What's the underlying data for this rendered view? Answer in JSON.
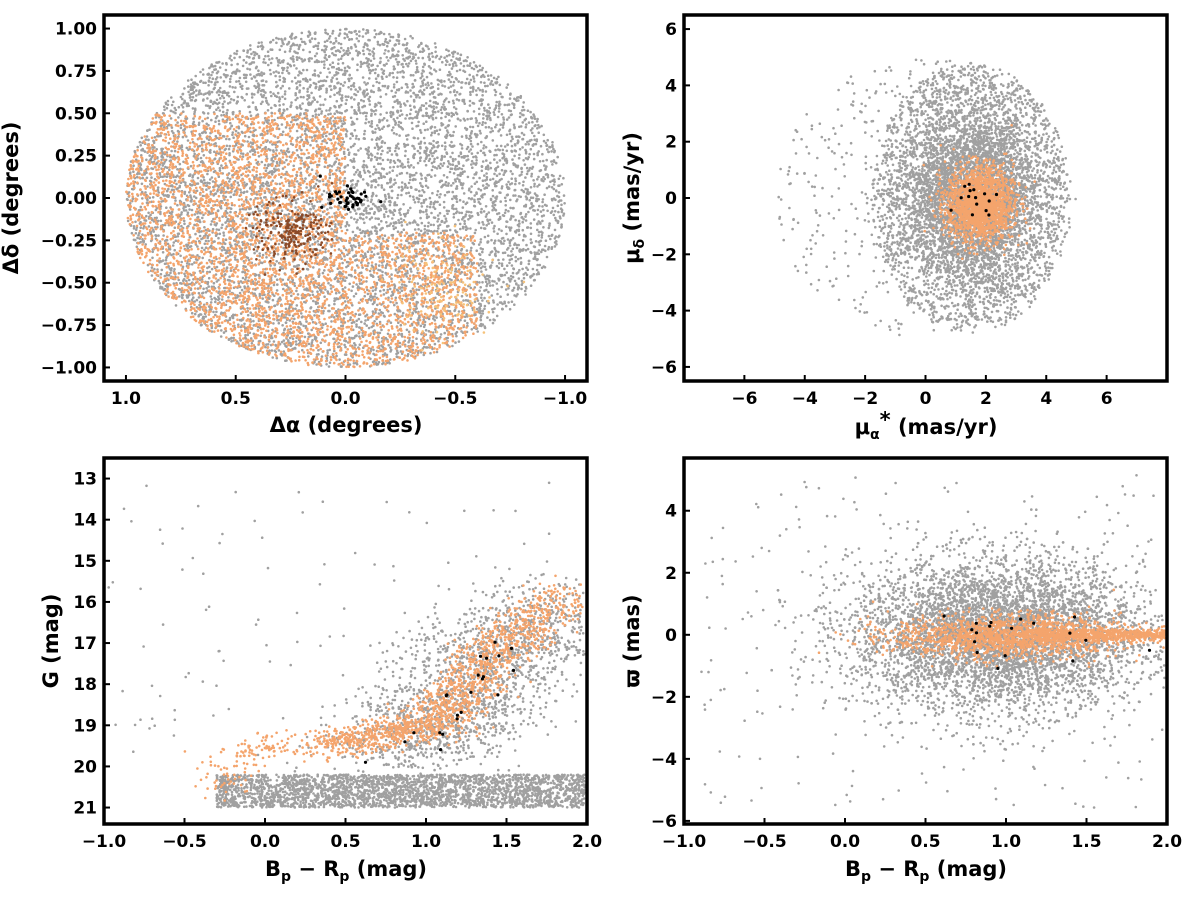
{
  "colors": {
    "field": "#a0a0a0",
    "members": "#f4a46c",
    "highlight": "#000000",
    "dark_orange": "#8b4a28",
    "light_orange": "#f6c27a"
  },
  "chart_data": [
    {
      "id": "sky",
      "type": "scatter",
      "xlabel": "Δα (degrees)",
      "ylabel": "Δδ (degrees)",
      "xlim": [
        1.1,
        -1.1
      ],
      "ylim": [
        -1.08,
        1.08
      ],
      "x_reversed": true,
      "xticks": [
        1.0,
        0.5,
        0.0,
        -0.5,
        -1.0
      ],
      "xtick_labels": [
        "1.0",
        "0.5",
        "0.0",
        "−0.5",
        "−1.0"
      ],
      "yticks": [
        1.0,
        0.75,
        0.5,
        0.25,
        0.0,
        -0.25,
        -0.5,
        -0.75,
        -1.0
      ],
      "ytick_labels": [
        "1.00",
        "0.75",
        "0.50",
        "0.25",
        "0.00",
        "−0.25",
        "−0.50",
        "−0.75",
        "−1.00"
      ],
      "grid": false,
      "series": [
        {
          "kind": "uniform-disk",
          "color": "#a0a0a0",
          "center": [
            0,
            0
          ],
          "radius": [
            1.0,
            1.0
          ],
          "count": 7000
        },
        {
          "kind": "region",
          "color": "#f4a46c",
          "bounds": {
            "x": [
              0.0,
              1.0
            ],
            "y": [
              -1.0,
              0.5
            ]
          },
          "count": 3200
        },
        {
          "kind": "region",
          "color": "#f4a46c",
          "bounds": {
            "x": [
              -0.6,
              0.0
            ],
            "y": [
              -1.0,
              -0.2
            ]
          },
          "count": 900
        },
        {
          "kind": "cluster",
          "color": "#8b4a28",
          "center": [
            0.25,
            -0.2
          ],
          "spread": [
            0.08,
            0.09
          ],
          "count": 220
        },
        {
          "kind": "cluster",
          "color": "#f6c27a",
          "center": [
            -0.45,
            -0.55
          ],
          "spread": [
            0.12,
            0.15
          ],
          "count": 120
        },
        {
          "kind": "cluster",
          "color": "#000000",
          "center": [
            0.0,
            0.0
          ],
          "spread": [
            0.06,
            0.03
          ],
          "count": 45
        }
      ]
    },
    {
      "id": "proper-motion",
      "type": "scatter",
      "xlabel": "μα* (mas/yr)",
      "ylabel": "μδ (mas/yr)",
      "xlim": [
        -8,
        8
      ],
      "ylim": [
        -6.5,
        6.5
      ],
      "xticks": [
        -6,
        -4,
        -2,
        0,
        2,
        4,
        6
      ],
      "xtick_labels": [
        "−6",
        "−4",
        "−2",
        "0",
        "2",
        "4",
        "6"
      ],
      "yticks": [
        -6,
        -4,
        -2,
        0,
        2,
        4,
        6
      ],
      "ytick_labels": [
        "−6",
        "−4",
        "−2",
        "0",
        "2",
        "4",
        "6"
      ],
      "grid": false,
      "series": [
        {
          "kind": "disk",
          "color": "#a0a0a0",
          "center": [
            1.5,
            0.0
          ],
          "radius": [
            3.3,
            4.8
          ],
          "count": 6000
        },
        {
          "kind": "sparse-disk",
          "color": "#a0a0a0",
          "center": [
            0.0,
            0.0
          ],
          "radius": [
            5.0,
            5.0
          ],
          "count": 500
        },
        {
          "kind": "cluster",
          "color": "#f4a46c",
          "center": [
            1.8,
            -0.2
          ],
          "spread": [
            0.55,
            0.65
          ],
          "count": 1800
        },
        {
          "kind": "cluster",
          "color": "#000000",
          "center": [
            1.6,
            0.0
          ],
          "spread": [
            0.4,
            0.4
          ],
          "count": 15
        }
      ]
    },
    {
      "id": "cmd",
      "type": "scatter",
      "xlabel": "Bp − Rp (mag)",
      "ylabel": "G (mag)",
      "xlim": [
        -1.0,
        2.0
      ],
      "ylim": [
        21.4,
        12.5
      ],
      "y_reversed": true,
      "xticks": [
        -1.0,
        -0.5,
        0.0,
        0.5,
        1.0,
        1.5,
        2.0
      ],
      "xtick_labels": [
        "−1.0",
        "−0.5",
        "0.0",
        "0.5",
        "1.0",
        "1.5",
        "2.0"
      ],
      "yticks": [
        21,
        20,
        19,
        18,
        17,
        16,
        15,
        14,
        13
      ],
      "ytick_labels": [
        "21",
        "20",
        "19",
        "18",
        "17",
        "16",
        "15",
        "14",
        "13"
      ],
      "grid": false,
      "series": [
        {
          "kind": "band",
          "color": "#a0a0a0",
          "x": [
            -0.3,
            2.0
          ],
          "y": [
            20.2,
            21.0
          ],
          "count": 2600
        },
        {
          "kind": "sequence",
          "color": "#a0a0a0",
          "points": [
            [
              0.8,
              19.6
            ],
            [
              1.1,
              19.0
            ],
            [
              1.3,
              18.0
            ],
            [
              1.5,
              17.0
            ],
            [
              1.8,
              16.0
            ]
          ],
          "width": 0.28,
          "count": 1800
        },
        {
          "kind": "sequence",
          "color": "#f4a46c",
          "points": [
            [
              0.3,
              19.5
            ],
            [
              0.8,
              19.2
            ],
            [
              1.1,
              18.8
            ],
            [
              1.3,
              17.8
            ],
            [
              1.5,
              16.9
            ],
            [
              1.9,
              15.8
            ]
          ],
          "width": 0.12,
          "count": 1500
        },
        {
          "kind": "sequence",
          "color": "#f4a46c",
          "points": [
            [
              -0.3,
              20.6
            ],
            [
              -0.1,
              19.6
            ],
            [
              0.1,
              19.4
            ]
          ],
          "width": 0.1,
          "count": 120
        },
        {
          "kind": "scatter",
          "color": "#a0a0a0",
          "x": [
            -1.0,
            2.0
          ],
          "y": [
            13.0,
            20.0
          ],
          "count": 120
        },
        {
          "kind": "sequence",
          "color": "#000000",
          "points": [
            [
              0.6,
              20.2
            ],
            [
              1.0,
              19.3
            ],
            [
              1.3,
              18.0
            ],
            [
              1.5,
              17.0
            ]
          ],
          "width": 0.1,
          "count": 22
        }
      ]
    },
    {
      "id": "parallax",
      "type": "scatter",
      "xlabel": "Bp − Rp (mag)",
      "ylabel": "ϖ (mas)",
      "xlim": [
        -1.0,
        2.0
      ],
      "ylim": [
        -6.1,
        5.7
      ],
      "xticks": [
        -1.0,
        -0.5,
        0.0,
        0.5,
        1.0,
        1.5,
        2.0
      ],
      "xtick_labels": [
        "−1.0",
        "−0.5",
        "0.0",
        "0.5",
        "1.0",
        "1.5",
        "2.0"
      ],
      "yticks": [
        -6,
        -4,
        -2,
        0,
        2,
        4
      ],
      "ytick_labels": [
        "−6",
        "−4",
        "−2",
        "0",
        "2",
        "4"
      ],
      "grid": false,
      "series": [
        {
          "kind": "blob",
          "color": "#a0a0a0",
          "center": [
            0.95,
            0.0
          ],
          "spread": [
            0.45,
            1.2
          ],
          "count": 5500
        },
        {
          "kind": "scatter",
          "color": "#a0a0a0",
          "x": [
            -0.9,
            2.0
          ],
          "y": [
            -5.6,
            5.2
          ],
          "count": 250
        },
        {
          "kind": "blob",
          "color": "#f4a46c",
          "center": [
            1.0,
            -0.05
          ],
          "spread": [
            0.35,
            0.35
          ],
          "count": 1500
        },
        {
          "kind": "ridge",
          "color": "#f4a46c",
          "x": [
            1.2,
            2.0
          ],
          "y": 0.0,
          "width": 0.1,
          "count": 600
        },
        {
          "kind": "cluster",
          "color": "#000000",
          "center": [
            0.9,
            0.0
          ],
          "spread": [
            0.3,
            0.5
          ],
          "count": 18
        }
      ]
    }
  ]
}
